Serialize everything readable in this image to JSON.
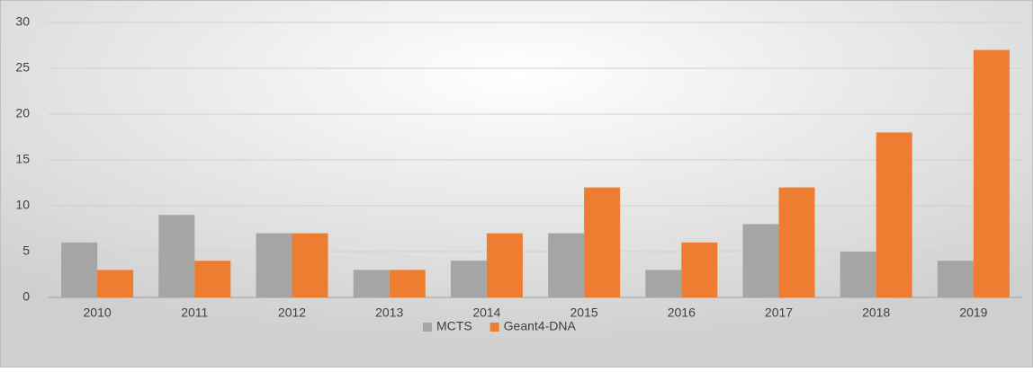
{
  "chart_data": {
    "type": "bar",
    "categories": [
      "2010",
      "2011",
      "2012",
      "2013",
      "2014",
      "2015",
      "2016",
      "2017",
      "2018",
      "2019"
    ],
    "series": [
      {
        "name": "MCTS",
        "color": "#a5a5a5",
        "values": [
          6,
          9,
          7,
          3,
          4,
          7,
          3,
          8,
          5,
          4
        ]
      },
      {
        "name": "Geant4-DNA",
        "color": "#ed7d31",
        "values": [
          3,
          4,
          7,
          3,
          7,
          12,
          6,
          12,
          18,
          27
        ]
      }
    ],
    "ylim": [
      0,
      30
    ],
    "yticks": [
      0,
      5,
      10,
      15,
      20,
      25,
      30
    ],
    "grid": true,
    "legend": "bottom"
  }
}
